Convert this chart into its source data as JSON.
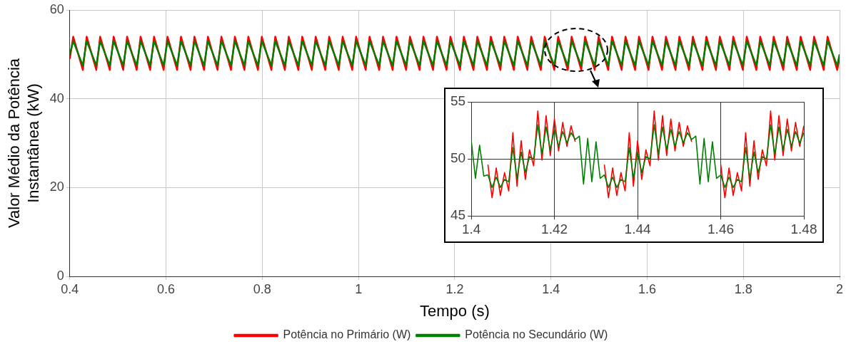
{
  "chart_data": [
    {
      "type": "line",
      "xlabel": "Tempo (s)",
      "ylabel": "Valor Médio da Potência\nInstantânea (kW)",
      "x": [
        0.4,
        0.407,
        0.427,
        0.435,
        0.455,
        0.463,
        0.483,
        0.491,
        0.511,
        0.519,
        0.539,
        0.547,
        0.567,
        0.575,
        0.595,
        0.603,
        0.623,
        0.631,
        0.651,
        0.659,
        0.679,
        0.687,
        0.707,
        0.715,
        0.735,
        0.743,
        0.763,
        0.771,
        0.791,
        0.799,
        0.819,
        0.827,
        0.847,
        0.855,
        0.875,
        0.883,
        0.903,
        0.911,
        0.931,
        0.939,
        0.959,
        0.967,
        0.987,
        0.995,
        1.015,
        1.023,
        1.043,
        1.051,
        1.071,
        1.079,
        1.099,
        1.107,
        1.127,
        1.135,
        1.155,
        1.163,
        1.183,
        1.191,
        1.211,
        1.219,
        1.239,
        1.247,
        1.267,
        1.275,
        1.295,
        1.303,
        1.323,
        1.331,
        1.351,
        1.359,
        1.379,
        1.387,
        1.407,
        1.415,
        1.435,
        1.443,
        1.463,
        1.471,
        1.491,
        1.499,
        1.519,
        1.527,
        1.547,
        1.555,
        1.575,
        1.583,
        1.603,
        1.611,
        1.631,
        1.639,
        1.659,
        1.667,
        1.687,
        1.695,
        1.715,
        1.723,
        1.743,
        1.751,
        1.771,
        1.779,
        1.799,
        1.807,
        1.827,
        1.835,
        1.855,
        1.863,
        1.883,
        1.891,
        1.911,
        1.919,
        1.939,
        1.947,
        1.967,
        1.975,
        1.995,
        2
      ],
      "series": [
        {
          "name": "Potência no Primário (W)",
          "color": "#ff0000",
          "values": [
            49,
            54,
            46.5,
            54,
            46.5,
            54,
            46.5,
            54,
            46.5,
            54,
            46.5,
            54,
            46.5,
            54,
            46.5,
            54,
            46.5,
            54,
            46.5,
            54,
            46.5,
            54,
            46.5,
            54,
            46.5,
            54,
            46.5,
            54,
            46.5,
            54,
            46.5,
            54,
            46.5,
            54,
            46.5,
            54,
            46.5,
            54,
            46.5,
            54,
            46.5,
            54,
            46.5,
            54,
            46.5,
            54,
            46.5,
            54,
            46.5,
            54,
            46.5,
            54,
            46.5,
            54,
            46.5,
            54,
            46.5,
            54,
            46.5,
            54,
            46.5,
            54,
            46.5,
            54,
            46.5,
            54,
            46.5,
            54,
            46.5,
            54,
            46.5,
            54,
            46.5,
            54,
            46.5,
            54,
            46.5,
            54,
            46.5,
            54,
            46.5,
            54,
            46.5,
            54,
            46.5,
            54,
            46.5,
            54,
            46.5,
            54,
            46.5,
            54,
            46.5,
            54,
            46.5,
            54,
            46.5,
            54,
            46.5,
            54,
            46.5,
            54,
            46.5,
            54,
            46.5,
            54,
            46.5,
            54,
            46.5,
            54,
            46.5,
            54,
            46.5,
            54,
            46.5,
            49
          ]
        },
        {
          "name": "Potência no Secundário (W)",
          "color": "#008000",
          "values": [
            50,
            53,
            47.5,
            53,
            47.5,
            53,
            47.5,
            53,
            47.5,
            53,
            47.5,
            53,
            47.5,
            53,
            47.5,
            53,
            47.5,
            53,
            47.5,
            53,
            47.5,
            53,
            47.5,
            53,
            47.5,
            53,
            47.5,
            53,
            47.5,
            53,
            47.5,
            53,
            47.5,
            53,
            47.5,
            53,
            47.5,
            53,
            47.5,
            53,
            47.5,
            53,
            47.5,
            53,
            47.5,
            53,
            47.5,
            53,
            47.5,
            53,
            47.5,
            53,
            47.5,
            53,
            47.5,
            53,
            47.5,
            53,
            47.5,
            53,
            47.5,
            53,
            47.5,
            53,
            47.5,
            53,
            47.5,
            53,
            47.5,
            53,
            47.5,
            53,
            47.5,
            53,
            47.5,
            53,
            47.5,
            53,
            47.5,
            53,
            47.5,
            53,
            47.5,
            53,
            47.5,
            53,
            47.5,
            53,
            47.5,
            53,
            47.5,
            53,
            47.5,
            53,
            47.5,
            53,
            47.5,
            53,
            47.5,
            53,
            47.5,
            53,
            47.5,
            53,
            47.5,
            53,
            47.5,
            53,
            47.5,
            53,
            47.5,
            53,
            47.5,
            53,
            47.5,
            50
          ]
        }
      ],
      "xlim": [
        0.4,
        2
      ],
      "ylim": [
        0,
        60
      ],
      "xticks": [
        0.4,
        0.6,
        0.8,
        1,
        1.2,
        1.4,
        1.6,
        1.8,
        2
      ],
      "yticks": [
        0,
        20,
        40,
        60
      ],
      "grid": true,
      "legend": "bottom",
      "marker": "none"
    },
    {
      "type": "line",
      "x": [
        1.4,
        1.401,
        1.402,
        1.403,
        1.404,
        1.405,
        1.406,
        1.407,
        1.408,
        1.409,
        1.41,
        1.411,
        1.412,
        1.413,
        1.414,
        1.415,
        1.416,
        1.417,
        1.418,
        1.419,
        1.42,
        1.421,
        1.422,
        1.423,
        1.424,
        1.425,
        1.426,
        1.427,
        1.428,
        1.429,
        1.43,
        1.431,
        1.432,
        1.433,
        1.434,
        1.435,
        1.436,
        1.437,
        1.438,
        1.439,
        1.44,
        1.441,
        1.442,
        1.443,
        1.444,
        1.445,
        1.446,
        1.447,
        1.448,
        1.449,
        1.45,
        1.451,
        1.452,
        1.453,
        1.454,
        1.455,
        1.456,
        1.457,
        1.458,
        1.459,
        1.46,
        1.461,
        1.462,
        1.463,
        1.464,
        1.465,
        1.466,
        1.467,
        1.468,
        1.469,
        1.47,
        1.471,
        1.472,
        1.473,
        1.474,
        1.475,
        1.476,
        1.477,
        1.478,
        1.479,
        1.48
      ],
      "series": [
        {
          "color": "#ff0000",
          "values": [
            null,
            null,
            null,
            null,
            49.5,
            46.6,
            49.2,
            46.8,
            48.8,
            47.2,
            52.3,
            47.6,
            51.6,
            48.2,
            50.8,
            49.4,
            54.2,
            49.9,
            53.8,
            50.3,
            53.5,
            50.7,
            53.2,
            51.1,
            52.9,
            51.5,
            null,
            null,
            null,
            null,
            null,
            null,
            49.5,
            46.6,
            49.2,
            46.8,
            48.8,
            47.2,
            52.3,
            47.6,
            51.6,
            48.2,
            50.8,
            49.4,
            54.2,
            49.9,
            53.8,
            50.3,
            53.5,
            50.7,
            53.2,
            51.1,
            52.9,
            51.5,
            null,
            null,
            null,
            null,
            null,
            null,
            49.5,
            46.6,
            49.2,
            46.8,
            48.8,
            47.2,
            52.3,
            47.6,
            51.6,
            48.2,
            50.8,
            49.4,
            54.2,
            49.9,
            53.8,
            50.3,
            53.5,
            50.7,
            53.2,
            51.1,
            52.9
          ]
        },
        {
          "color": "#008000",
          "values": [
            51.6,
            48.3,
            51.2,
            48.5,
            48.6,
            47.5,
            48.4,
            47.5,
            48.2,
            48,
            51,
            48.3,
            50.6,
            48.8,
            50.2,
            50,
            53,
            50.4,
            52.8,
            50.8,
            52.6,
            51.1,
            52.4,
            51.4,
            52.3,
            51.7,
            52.0,
            47.8,
            51.8,
            48.0,
            51.5,
            48.3,
            48.6,
            47.5,
            48.4,
            47.5,
            48.2,
            48,
            51,
            48.3,
            50.6,
            48.8,
            50.2,
            50,
            53,
            50.4,
            52.8,
            50.8,
            52.6,
            51.1,
            52.4,
            51.4,
            52.3,
            51.7,
            52.0,
            47.8,
            51.8,
            48.0,
            51.5,
            48.3,
            48.6,
            47.5,
            48.4,
            47.5,
            48.2,
            48,
            51,
            48.3,
            50.6,
            48.8,
            50.2,
            50,
            53,
            50.4,
            52.8,
            50.8,
            52.6,
            51.1,
            52.4,
            51.4,
            52.3
          ]
        }
      ],
      "xlim": [
        1.4,
        1.48
      ],
      "ylim": [
        45,
        55
      ],
      "xticks": [
        1.4,
        1.42,
        1.44,
        1.46,
        1.48
      ],
      "yticks": [
        45,
        50,
        55
      ],
      "grid": true,
      "marker": "none"
    }
  ]
}
